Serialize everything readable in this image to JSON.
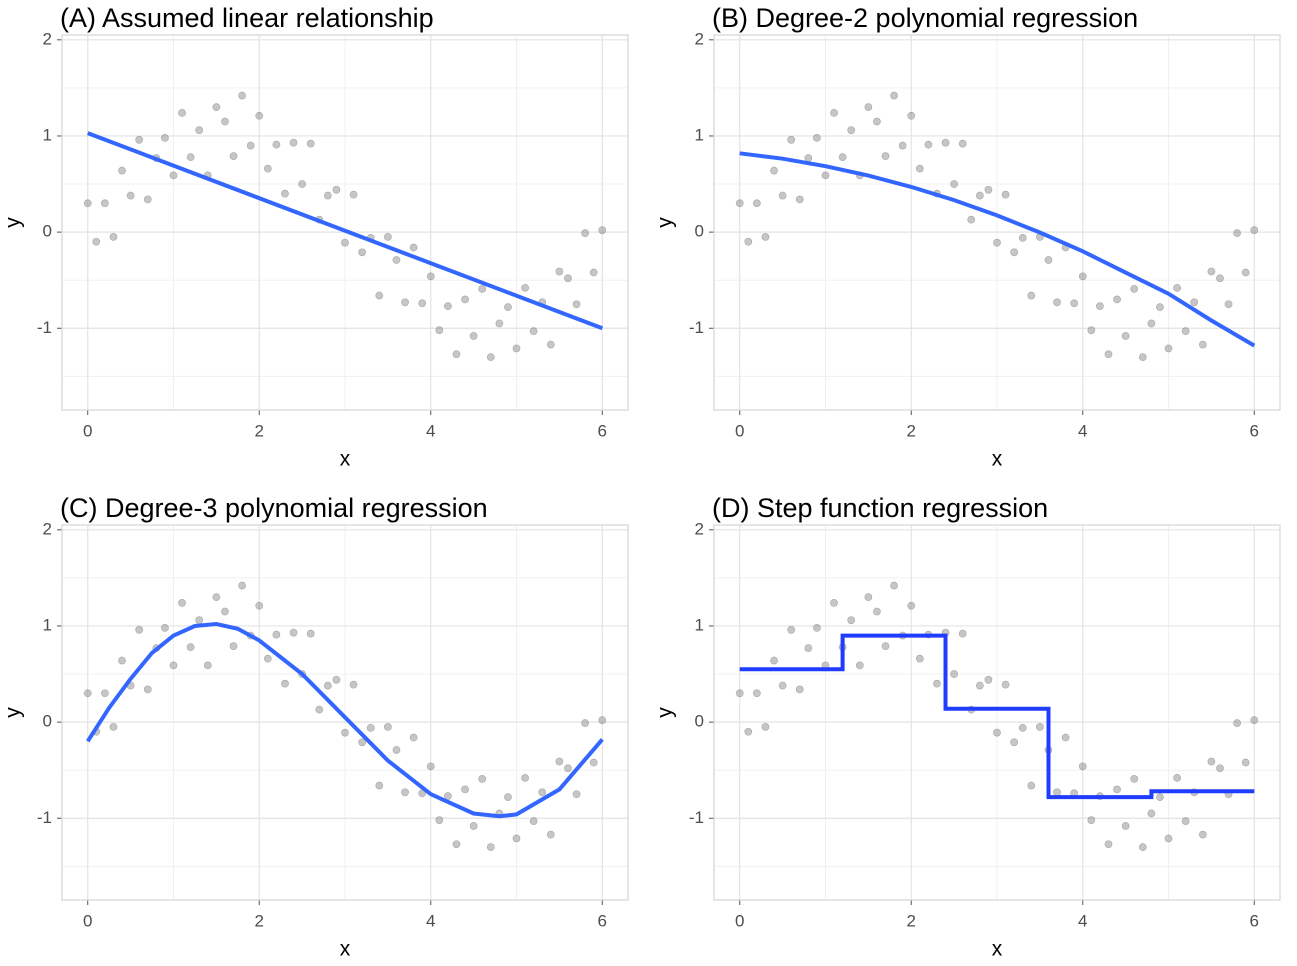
{
  "chart_data": [
    {
      "type": "scatter",
      "title": "(A) Assumed linear relationship",
      "x_label": "x",
      "y_label": "y",
      "xlim": [
        -0.3,
        6.3
      ],
      "ylim": [
        -1.85,
        2.05
      ],
      "xticks": [
        0,
        2,
        4,
        6
      ],
      "yticks": [
        -1,
        0,
        1,
        2
      ],
      "grid": true,
      "points": {
        "color": "#808080",
        "x": [
          0,
          0.1,
          0.2,
          0.3,
          0.4,
          0.5,
          0.6,
          0.7,
          0.8,
          0.9,
          1.0,
          1.1,
          1.2,
          1.3,
          1.4,
          1.5,
          1.6,
          1.7,
          1.8,
          1.9,
          2.0,
          2.1,
          2.2,
          2.3,
          2.4,
          2.5,
          2.6,
          2.7,
          2.8,
          2.9,
          3.0,
          3.1,
          3.2,
          3.3,
          3.4,
          3.5,
          3.6,
          3.7,
          3.8,
          3.9,
          4.0,
          4.1,
          4.2,
          4.3,
          4.4,
          4.5,
          4.6,
          4.7,
          4.8,
          4.9,
          5.0,
          5.1,
          5.2,
          5.3,
          5.4,
          5.5,
          5.6,
          5.7,
          5.8,
          5.9,
          6.0
        ],
        "y": [
          0.3,
          -0.1,
          0.3,
          -0.05,
          0.64,
          0.38,
          0.96,
          0.34,
          0.77,
          0.98,
          0.59,
          1.24,
          0.78,
          1.06,
          0.59,
          1.3,
          1.15,
          0.79,
          1.42,
          0.9,
          1.21,
          0.66,
          0.91,
          0.4,
          0.93,
          0.5,
          0.92,
          0.13,
          0.38,
          0.44,
          -0.11,
          0.39,
          -0.21,
          -0.06,
          -0.66,
          -0.05,
          -0.29,
          -0.73,
          -0.16,
          -0.74,
          -0.46,
          -1.02,
          -0.77,
          -1.27,
          -0.7,
          -1.08,
          -0.59,
          -1.3,
          -0.95,
          -0.78,
          -1.21,
          -0.58,
          -1.03,
          -0.73,
          -1.17,
          -0.41,
          -0.48,
          -0.75,
          -0.01,
          -0.42,
          0.02
        ]
      },
      "fit": {
        "color": "#3366ff",
        "x": [
          0,
          6
        ],
        "y": [
          1.03,
          -1.0
        ]
      }
    },
    {
      "type": "scatter",
      "title": "(B) Degree-2 polynomial regression",
      "x_label": "x",
      "y_label": "y",
      "xlim": [
        -0.3,
        6.3
      ],
      "ylim": [
        -1.85,
        2.05
      ],
      "xticks": [
        0,
        2,
        4,
        6
      ],
      "yticks": [
        -1,
        0,
        1,
        2
      ],
      "grid": true,
      "points": {
        "color": "#808080",
        "x": [
          0,
          0.1,
          0.2,
          0.3,
          0.4,
          0.5,
          0.6,
          0.7,
          0.8,
          0.9,
          1.0,
          1.1,
          1.2,
          1.3,
          1.4,
          1.5,
          1.6,
          1.7,
          1.8,
          1.9,
          2.0,
          2.1,
          2.2,
          2.3,
          2.4,
          2.5,
          2.6,
          2.7,
          2.8,
          2.9,
          3.0,
          3.1,
          3.2,
          3.3,
          3.4,
          3.5,
          3.6,
          3.7,
          3.8,
          3.9,
          4.0,
          4.1,
          4.2,
          4.3,
          4.4,
          4.5,
          4.6,
          4.7,
          4.8,
          4.9,
          5.0,
          5.1,
          5.2,
          5.3,
          5.4,
          5.5,
          5.6,
          5.7,
          5.8,
          5.9,
          6.0
        ],
        "y": [
          0.3,
          -0.1,
          0.3,
          -0.05,
          0.64,
          0.38,
          0.96,
          0.34,
          0.77,
          0.98,
          0.59,
          1.24,
          0.78,
          1.06,
          0.59,
          1.3,
          1.15,
          0.79,
          1.42,
          0.9,
          1.21,
          0.66,
          0.91,
          0.4,
          0.93,
          0.5,
          0.92,
          0.13,
          0.38,
          0.44,
          -0.11,
          0.39,
          -0.21,
          -0.06,
          -0.66,
          -0.05,
          -0.29,
          -0.73,
          -0.16,
          -0.74,
          -0.46,
          -1.02,
          -0.77,
          -1.27,
          -0.7,
          -1.08,
          -0.59,
          -1.3,
          -0.95,
          -0.78,
          -1.21,
          -0.58,
          -1.03,
          -0.73,
          -1.17,
          -0.41,
          -0.48,
          -0.75,
          -0.01,
          -0.42,
          0.02
        ]
      },
      "fit": {
        "color": "#3366ff",
        "x": [
          0,
          0.5,
          1,
          1.5,
          2,
          2.5,
          3,
          3.5,
          4,
          4.5,
          5,
          5.5,
          6
        ],
        "y": [
          0.82,
          0.763,
          0.686,
          0.588,
          0.47,
          0.333,
          0.174,
          -0.004,
          -0.2,
          -0.421,
          -0.64,
          -0.919,
          -1.18
        ]
      }
    },
    {
      "type": "scatter",
      "title": "(C) Degree-3 polynomial regression",
      "x_label": "x",
      "y_label": "y",
      "xlim": [
        -0.3,
        6.3
      ],
      "ylim": [
        -1.85,
        2.05
      ],
      "xticks": [
        0,
        2,
        4,
        6
      ],
      "yticks": [
        -1,
        0,
        1,
        2
      ],
      "grid": true,
      "points": {
        "color": "#808080",
        "x": [
          0,
          0.1,
          0.2,
          0.3,
          0.4,
          0.5,
          0.6,
          0.7,
          0.8,
          0.9,
          1.0,
          1.1,
          1.2,
          1.3,
          1.4,
          1.5,
          1.6,
          1.7,
          1.8,
          1.9,
          2.0,
          2.1,
          2.2,
          2.3,
          2.4,
          2.5,
          2.6,
          2.7,
          2.8,
          2.9,
          3.0,
          3.1,
          3.2,
          3.3,
          3.4,
          3.5,
          3.6,
          3.7,
          3.8,
          3.9,
          4.0,
          4.1,
          4.2,
          4.3,
          4.4,
          4.5,
          4.6,
          4.7,
          4.8,
          4.9,
          5.0,
          5.1,
          5.2,
          5.3,
          5.4,
          5.5,
          5.6,
          5.7,
          5.8,
          5.9,
          6.0
        ],
        "y": [
          0.3,
          -0.1,
          0.3,
          -0.05,
          0.64,
          0.38,
          0.96,
          0.34,
          0.77,
          0.98,
          0.59,
          1.24,
          0.78,
          1.06,
          0.59,
          1.3,
          1.15,
          0.79,
          1.42,
          0.9,
          1.21,
          0.66,
          0.91,
          0.4,
          0.93,
          0.5,
          0.92,
          0.13,
          0.38,
          0.44,
          -0.11,
          0.39,
          -0.21,
          -0.06,
          -0.66,
          -0.05,
          -0.29,
          -0.73,
          -0.16,
          -0.74,
          -0.46,
          -1.02,
          -0.77,
          -1.27,
          -0.7,
          -1.08,
          -0.59,
          -1.3,
          -0.95,
          -0.78,
          -1.21,
          -0.58,
          -1.03,
          -0.73,
          -1.17,
          -0.41,
          -0.48,
          -0.75,
          -0.01,
          -0.42,
          0.02
        ]
      },
      "fit": {
        "color": "#3366ff",
        "x": [
          0,
          0.25,
          0.5,
          0.75,
          1,
          1.25,
          1.5,
          1.75,
          2,
          2.5,
          3,
          3.5,
          4,
          4.5,
          4.8,
          5,
          5.5,
          6
        ],
        "y": [
          -0.2,
          0.15,
          0.45,
          0.72,
          0.9,
          1.0,
          1.02,
          0.97,
          0.85,
          0.5,
          0.05,
          -0.4,
          -0.75,
          -0.95,
          -0.98,
          -0.96,
          -0.7,
          -0.18
        ]
      }
    },
    {
      "type": "scatter",
      "title": "(D) Step function regression",
      "x_label": "x",
      "y_label": "y",
      "xlim": [
        -0.3,
        6.3
      ],
      "ylim": [
        -1.85,
        2.05
      ],
      "xticks": [
        0,
        2,
        4,
        6
      ],
      "yticks": [
        -1,
        0,
        1,
        2
      ],
      "grid": true,
      "points": {
        "color": "#808080",
        "x": [
          0,
          0.1,
          0.2,
          0.3,
          0.4,
          0.5,
          0.6,
          0.7,
          0.8,
          0.9,
          1.0,
          1.1,
          1.2,
          1.3,
          1.4,
          1.5,
          1.6,
          1.7,
          1.8,
          1.9,
          2.0,
          2.1,
          2.2,
          2.3,
          2.4,
          2.5,
          2.6,
          2.7,
          2.8,
          2.9,
          3.0,
          3.1,
          3.2,
          3.3,
          3.4,
          3.5,
          3.6,
          3.7,
          3.8,
          3.9,
          4.0,
          4.1,
          4.2,
          4.3,
          4.4,
          4.5,
          4.6,
          4.7,
          4.8,
          4.9,
          5.0,
          5.1,
          5.2,
          5.3,
          5.4,
          5.5,
          5.6,
          5.7,
          5.8,
          5.9,
          6.0
        ],
        "y": [
          0.3,
          -0.1,
          0.3,
          -0.05,
          0.64,
          0.38,
          0.96,
          0.34,
          0.77,
          0.98,
          0.59,
          1.24,
          0.78,
          1.06,
          0.59,
          1.3,
          1.15,
          0.79,
          1.42,
          0.9,
          1.21,
          0.66,
          0.91,
          0.4,
          0.93,
          0.5,
          0.92,
          0.13,
          0.38,
          0.44,
          -0.11,
          0.39,
          -0.21,
          -0.06,
          -0.66,
          -0.05,
          -0.29,
          -0.73,
          -0.16,
          -0.74,
          -0.46,
          -1.02,
          -0.77,
          -1.27,
          -0.7,
          -1.08,
          -0.59,
          -1.3,
          -0.95,
          -0.78,
          -1.21,
          -0.58,
          -1.03,
          -0.73,
          -1.17,
          -0.41,
          -0.48,
          -0.75,
          -0.01,
          -0.42,
          0.02
        ]
      },
      "fit": {
        "color": "#1f3cff",
        "x": [
          0,
          1.2,
          1.2,
          2.4,
          2.4,
          3.6,
          3.6,
          4.8,
          4.8,
          6
        ],
        "y": [
          0.55,
          0.55,
          0.9,
          0.9,
          0.14,
          0.14,
          -0.78,
          -0.78,
          -0.72,
          -0.72
        ]
      }
    }
  ]
}
